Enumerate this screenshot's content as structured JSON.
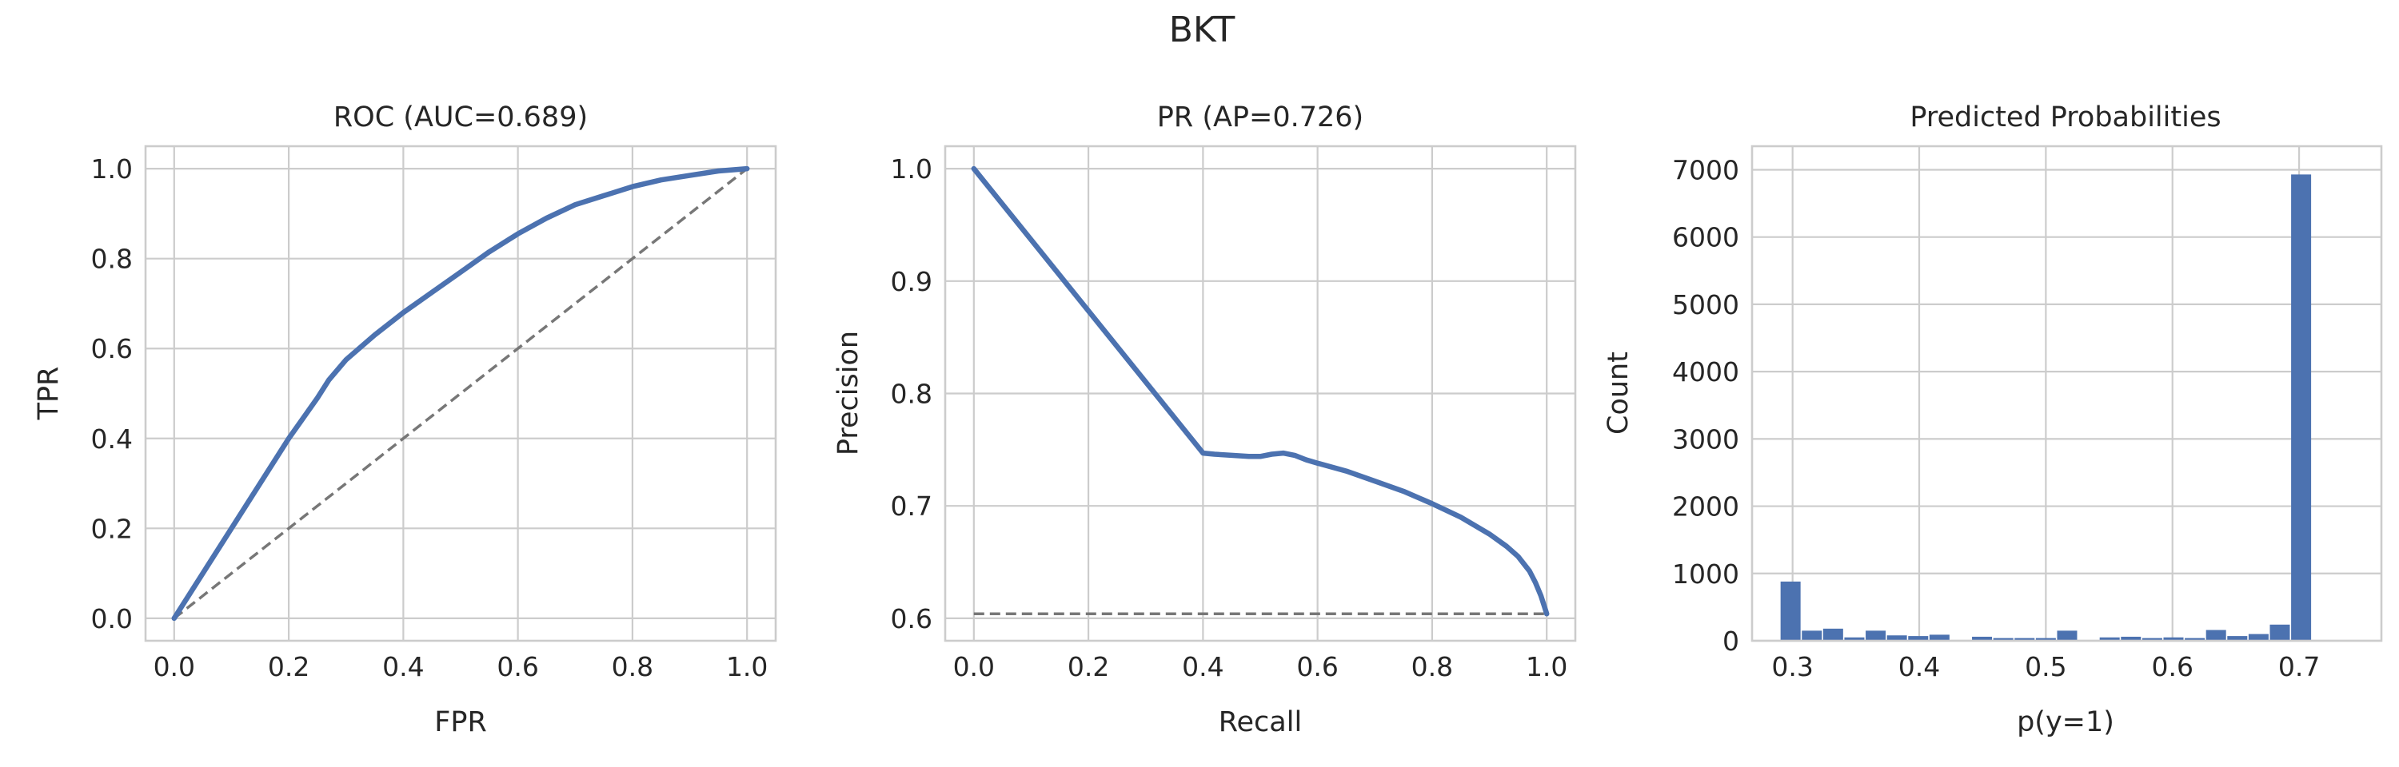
{
  "figure": {
    "title": "BKT"
  },
  "chart_data": [
    {
      "type": "line",
      "title": "ROC (AUC=0.689)",
      "xlabel": "FPR",
      "ylabel": "TPR",
      "xlim": [
        -0.05,
        1.05
      ],
      "ylim": [
        -0.05,
        1.05
      ],
      "xticks": [
        0.0,
        0.2,
        0.4,
        0.6,
        0.8,
        1.0
      ],
      "yticks": [
        0.0,
        0.2,
        0.4,
        0.6,
        0.8,
        1.0
      ],
      "xtick_labels": [
        "0.0",
        "0.2",
        "0.4",
        "0.6",
        "0.8",
        "1.0"
      ],
      "ytick_labels": [
        "0.0",
        "0.2",
        "0.4",
        "0.6",
        "0.8",
        "1.0"
      ],
      "grid": true,
      "series": [
        {
          "role": "curve",
          "color": "#4c72b0",
          "style": "solid",
          "x": [
            0.0,
            0.05,
            0.1,
            0.15,
            0.2,
            0.25,
            0.27,
            0.3,
            0.35,
            0.4,
            0.45,
            0.5,
            0.55,
            0.6,
            0.65,
            0.7,
            0.75,
            0.8,
            0.85,
            0.9,
            0.95,
            1.0
          ],
          "y": [
            0.0,
            0.1,
            0.2,
            0.3,
            0.4,
            0.49,
            0.53,
            0.575,
            0.63,
            0.68,
            0.725,
            0.77,
            0.815,
            0.855,
            0.89,
            0.92,
            0.94,
            0.96,
            0.975,
            0.985,
            0.995,
            1.0
          ]
        },
        {
          "role": "chance",
          "color": "#777777",
          "style": "dashed",
          "x": [
            0.0,
            1.0
          ],
          "y": [
            0.0,
            1.0
          ]
        }
      ]
    },
    {
      "type": "line",
      "title": "PR (AP=0.726)",
      "xlabel": "Recall",
      "ylabel": "Precision",
      "xlim": [
        -0.05,
        1.05
      ],
      "ylim": [
        0.58,
        1.02
      ],
      "xticks": [
        0.0,
        0.2,
        0.4,
        0.6,
        0.8,
        1.0
      ],
      "yticks": [
        0.6,
        0.7,
        0.8,
        0.9,
        1.0
      ],
      "xtick_labels": [
        "0.0",
        "0.2",
        "0.4",
        "0.6",
        "0.8",
        "1.0"
      ],
      "ytick_labels": [
        "0.6",
        "0.7",
        "0.8",
        "0.9",
        "1.0"
      ],
      "grid": true,
      "series": [
        {
          "role": "curve",
          "color": "#4c72b0",
          "style": "solid",
          "x": [
            0.0,
            0.4,
            0.42,
            0.45,
            0.48,
            0.5,
            0.52,
            0.54,
            0.56,
            0.58,
            0.6,
            0.65,
            0.7,
            0.75,
            0.8,
            0.85,
            0.9,
            0.93,
            0.95,
            0.97,
            0.98,
            0.99,
            1.0
          ],
          "y": [
            1.0,
            0.747,
            0.746,
            0.745,
            0.744,
            0.744,
            0.746,
            0.747,
            0.745,
            0.741,
            0.738,
            0.731,
            0.722,
            0.713,
            0.702,
            0.69,
            0.675,
            0.664,
            0.655,
            0.642,
            0.632,
            0.62,
            0.604
          ]
        },
        {
          "role": "baseline",
          "color": "#777777",
          "style": "dashed",
          "x": [
            0.0,
            1.0
          ],
          "y": [
            0.604,
            0.604
          ]
        }
      ]
    },
    {
      "type": "bar",
      "title": "Predicted Probabilities",
      "xlabel": "p(y=1)",
      "ylabel": "Count",
      "xlim": [
        0.268,
        0.765
      ],
      "ylim": [
        0,
        7350
      ],
      "xticks": [
        0.3,
        0.4,
        0.5,
        0.6,
        0.7
      ],
      "yticks": [
        0,
        1000,
        2000,
        3000,
        4000,
        5000,
        6000,
        7000
      ],
      "xtick_labels": [
        "0.3",
        "0.4",
        "0.5",
        "0.6",
        "0.7"
      ],
      "ytick_labels": [
        "0",
        "1000",
        "2000",
        "3000",
        "4000",
        "5000",
        "6000",
        "7000"
      ],
      "grid": true,
      "color": "#4c72b0",
      "bin_edges": [
        0.29,
        0.3068,
        0.3236,
        0.3404,
        0.3572,
        0.374,
        0.3908,
        0.4076,
        0.4244,
        0.4412,
        0.458,
        0.4748,
        0.4916,
        0.5084,
        0.5252,
        0.542,
        0.5588,
        0.5756,
        0.5924,
        0.6092,
        0.626,
        0.6428,
        0.6596,
        0.6764,
        0.6932,
        0.71,
        0.7268,
        0.7436
      ],
      "counts": [
        880,
        150,
        180,
        50,
        150,
        80,
        70,
        90,
        10,
        60,
        40,
        40,
        40,
        150,
        10,
        50,
        60,
        40,
        50,
        40,
        160,
        70,
        100,
        240,
        6930,
        0,
        0
      ]
    }
  ]
}
